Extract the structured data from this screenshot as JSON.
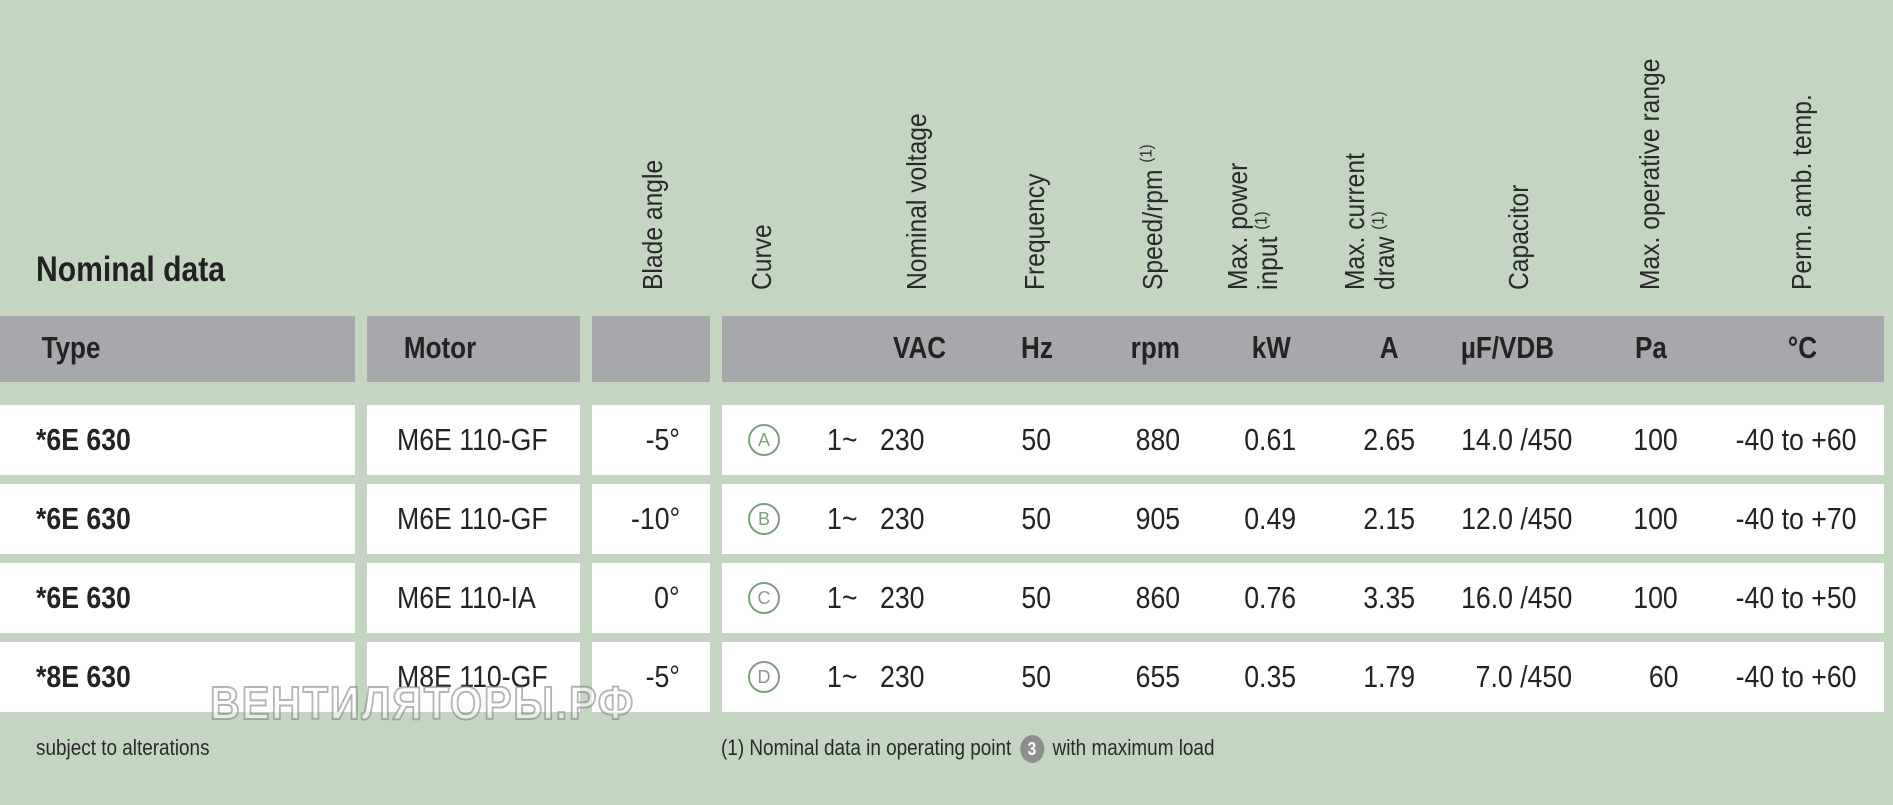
{
  "title": "Nominal data",
  "column_headers": {
    "blade_angle": "Blade angle",
    "curve": "Curve",
    "nominal_voltage": "Nominal voltage",
    "frequency": "Frequency",
    "speed": "Speed/rpm",
    "speed_note": "(1)",
    "max_power_line1": "Max. power",
    "max_power_line2": "input",
    "max_power_note": "(1)",
    "max_current_line1": "Max. current",
    "max_current_line2": "draw",
    "max_current_note": "(1)",
    "capacitor": "Capacitor",
    "max_range": "Max. operative range",
    "perm_temp": "Perm. amb. temp."
  },
  "units": {
    "type": "Type",
    "motor": "Motor",
    "voltage": "VAC",
    "frequency": "Hz",
    "speed": "rpm",
    "power": "kW",
    "current": "A",
    "capacitor": "µF/VDB",
    "pressure": "Pa",
    "temp": "°C"
  },
  "rows": [
    {
      "type": "*6E  630",
      "motor": "M6E 110-GF",
      "blade_angle": "-5°",
      "curve": "A",
      "phase": "1~",
      "voltage": "230",
      "frequency": "50",
      "speed": "880",
      "power": "0.61",
      "current": "2.65",
      "capacitor": "14.0 /450",
      "pressure": "100",
      "temp": "-40 to +60"
    },
    {
      "type": "*6E  630",
      "motor": "M6E 110-GF",
      "blade_angle": "-10°",
      "curve": "B",
      "phase": "1~",
      "voltage": "230",
      "frequency": "50",
      "speed": "905",
      "power": "0.49",
      "current": "2.15",
      "capacitor": "12.0 /450",
      "pressure": "100",
      "temp": "-40 to +70"
    },
    {
      "type": "*6E  630",
      "motor": "M6E 110-IA",
      "blade_angle": "0°",
      "curve": "C",
      "phase": "1~",
      "voltage": "230",
      "frequency": "50",
      "speed": "860",
      "power": "0.76",
      "current": "3.35",
      "capacitor": "16.0 /450",
      "pressure": "100",
      "temp": "-40 to +50"
    },
    {
      "type": "*8E  630",
      "motor": "M8E 110-GF",
      "blade_angle": "-5°",
      "curve": "D",
      "phase": "1~",
      "voltage": "230",
      "frequency": "50",
      "speed": "655",
      "power": "0.35",
      "current": "1.79",
      "capacitor": "7.0 /450",
      "pressure": "60",
      "temp": "-40 to +60"
    }
  ],
  "footer": {
    "left": "subject to alterations",
    "note_prefix": "(1) Nominal data in operating point",
    "note_badge": "3",
    "note_suffix": "with maximum load"
  },
  "watermark": "ВЕНТИЛЯТОРЫ.РФ"
}
